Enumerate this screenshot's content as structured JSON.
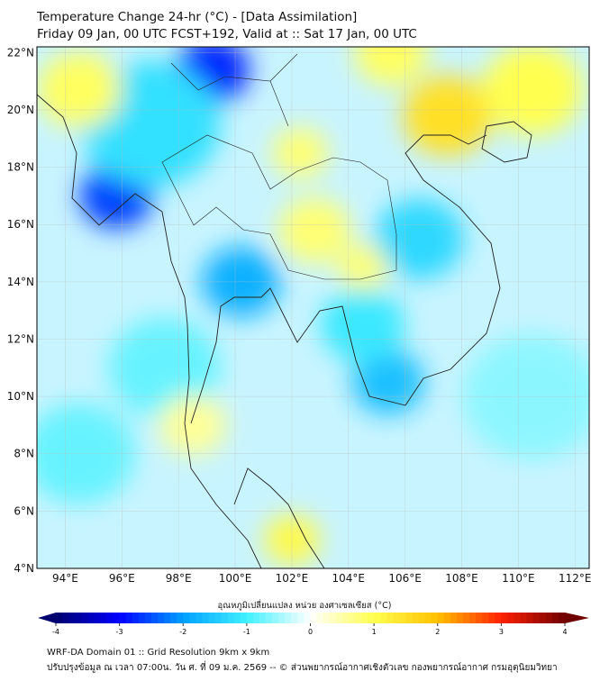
{
  "header": {
    "title": "Temperature Change 24-hr (°C) - [Data Assimilation]",
    "subtitle": "Friday 09 Jan, 00 UTC FCST+192, Valid at :: Sat 17 Jan, 00 UTC"
  },
  "map": {
    "lon_range": [
      93,
      112.5
    ],
    "lat_range": [
      4,
      22.2
    ],
    "lon_ticks": [
      {
        "v": 94,
        "label": "94°E"
      },
      {
        "v": 96,
        "label": "96°E"
      },
      {
        "v": 98,
        "label": "98°E"
      },
      {
        "v": 100,
        "label": "100°E"
      },
      {
        "v": 102,
        "label": "102°E"
      },
      {
        "v": 104,
        "label": "104°E"
      },
      {
        "v": 106,
        "label": "106°E"
      },
      {
        "v": 108,
        "label": "108°E"
      },
      {
        "v": 110,
        "label": "110°E"
      },
      {
        "v": 112,
        "label": "112°E"
      }
    ],
    "lat_ticks": [
      {
        "v": 22,
        "label": "22°N"
      },
      {
        "v": 20,
        "label": "20°N"
      },
      {
        "v": 18,
        "label": "18°N"
      },
      {
        "v": 16,
        "label": "16°N"
      },
      {
        "v": 14,
        "label": "14°N"
      },
      {
        "v": 12,
        "label": "12°N"
      },
      {
        "v": 10,
        "label": "10°N"
      },
      {
        "v": 8,
        "label": "8°N"
      },
      {
        "v": 6,
        "label": "6°N"
      },
      {
        "v": 4,
        "label": "4°N"
      }
    ],
    "field": [
      {
        "lon": 99.2,
        "lat": 21.4,
        "value": -2.8,
        "r": 1.3
      },
      {
        "lon": 95.8,
        "lat": 17.0,
        "value": -2.6,
        "r": 1.3
      },
      {
        "lon": 97.0,
        "lat": 19.5,
        "value": -1.2,
        "r": 2.5
      },
      {
        "lon": 100.2,
        "lat": 14.0,
        "value": -1.8,
        "r": 1.4
      },
      {
        "lon": 105.4,
        "lat": 10.5,
        "value": -1.6,
        "r": 1.3
      },
      {
        "lon": 106.5,
        "lat": 15.5,
        "value": -1.3,
        "r": 1.6
      },
      {
        "lon": 104.5,
        "lat": 12.5,
        "value": -1.1,
        "r": 1.5
      },
      {
        "lon": 97.5,
        "lat": 11.0,
        "value": -0.8,
        "r": 2.0
      },
      {
        "lon": 94.5,
        "lat": 8.0,
        "value": -0.8,
        "r": 2.0
      },
      {
        "lon": 110.5,
        "lat": 10.0,
        "value": -0.6,
        "r": 2.5
      },
      {
        "lon": 107.5,
        "lat": 19.8,
        "value": 1.5,
        "r": 1.6
      },
      {
        "lon": 110.5,
        "lat": 20.7,
        "value": 1.0,
        "r": 1.8
      },
      {
        "lon": 94.5,
        "lat": 20.7,
        "value": 0.9,
        "r": 1.5
      },
      {
        "lon": 102.3,
        "lat": 18.5,
        "value": 0.8,
        "r": 1.0
      },
      {
        "lon": 102.8,
        "lat": 15.8,
        "value": 0.8,
        "r": 1.3
      },
      {
        "lon": 104.5,
        "lat": 14.5,
        "value": 0.8,
        "r": 0.9
      },
      {
        "lon": 102.0,
        "lat": 5.0,
        "value": 1.1,
        "r": 1.0
      },
      {
        "lon": 98.5,
        "lat": 9.0,
        "value": 0.6,
        "r": 1.2
      },
      {
        "lon": 105.5,
        "lat": 22.0,
        "value": 0.9,
        "r": 1.3
      }
    ]
  },
  "colorbar": {
    "label": "อุณหภูมิเปลี่ยนแปลง หน่วย องศาเซลเซียส (°C)",
    "min": -4,
    "max": 4,
    "ticks": [
      "-4",
      "-3",
      "-2",
      "-1",
      "0",
      "1",
      "2",
      "3",
      "4"
    ],
    "colors": [
      "#00006e",
      "#0000ff",
      "#00a0ff",
      "#40f0ff",
      "#ffffff",
      "#ffff50",
      "#ffc000",
      "#ff2000",
      "#700000"
    ]
  },
  "footer": {
    "line1": "WRF-DA Domain 01 :: Grid Resolution 9km x 9km",
    "line2": "ปรับปรุงข้อมูล ณ เวลา 07:00น. วัน ศ. ที่ 09 ม.ค. 2569 -- © ส่วนพยากรณ์อากาศเชิงตัวเลข กองพยากรณ์อากาศ กรมอุตุนิยมวิทยา"
  }
}
